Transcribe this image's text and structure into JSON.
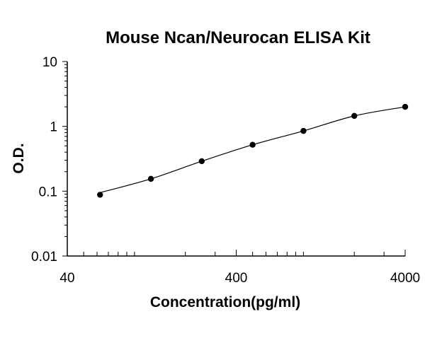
{
  "chart_data": {
    "type": "scatter",
    "title": "Mouse Ncan/Neurocan ELISA Kit",
    "xlabel": "Concentration(pg/ml)",
    "ylabel": "O.D.",
    "x_scale": "log",
    "y_scale": "log",
    "xlim": [
      40,
      4000
    ],
    "ylim": [
      0.01,
      10
    ],
    "x_tick_labels": [
      "40",
      "400",
      "4000"
    ],
    "y_tick_labels": [
      "10",
      "1",
      "0.1",
      "0.01"
    ],
    "grid": false,
    "legend": "none",
    "series": [
      {
        "x": [
          62.5,
          125,
          250,
          500,
          1000,
          2000,
          4000
        ],
        "y": [
          0.088,
          0.155,
          0.29,
          0.52,
          0.85,
          1.45,
          2.0
        ],
        "marker_color": "#000000",
        "fit_curve": true
      }
    ]
  }
}
